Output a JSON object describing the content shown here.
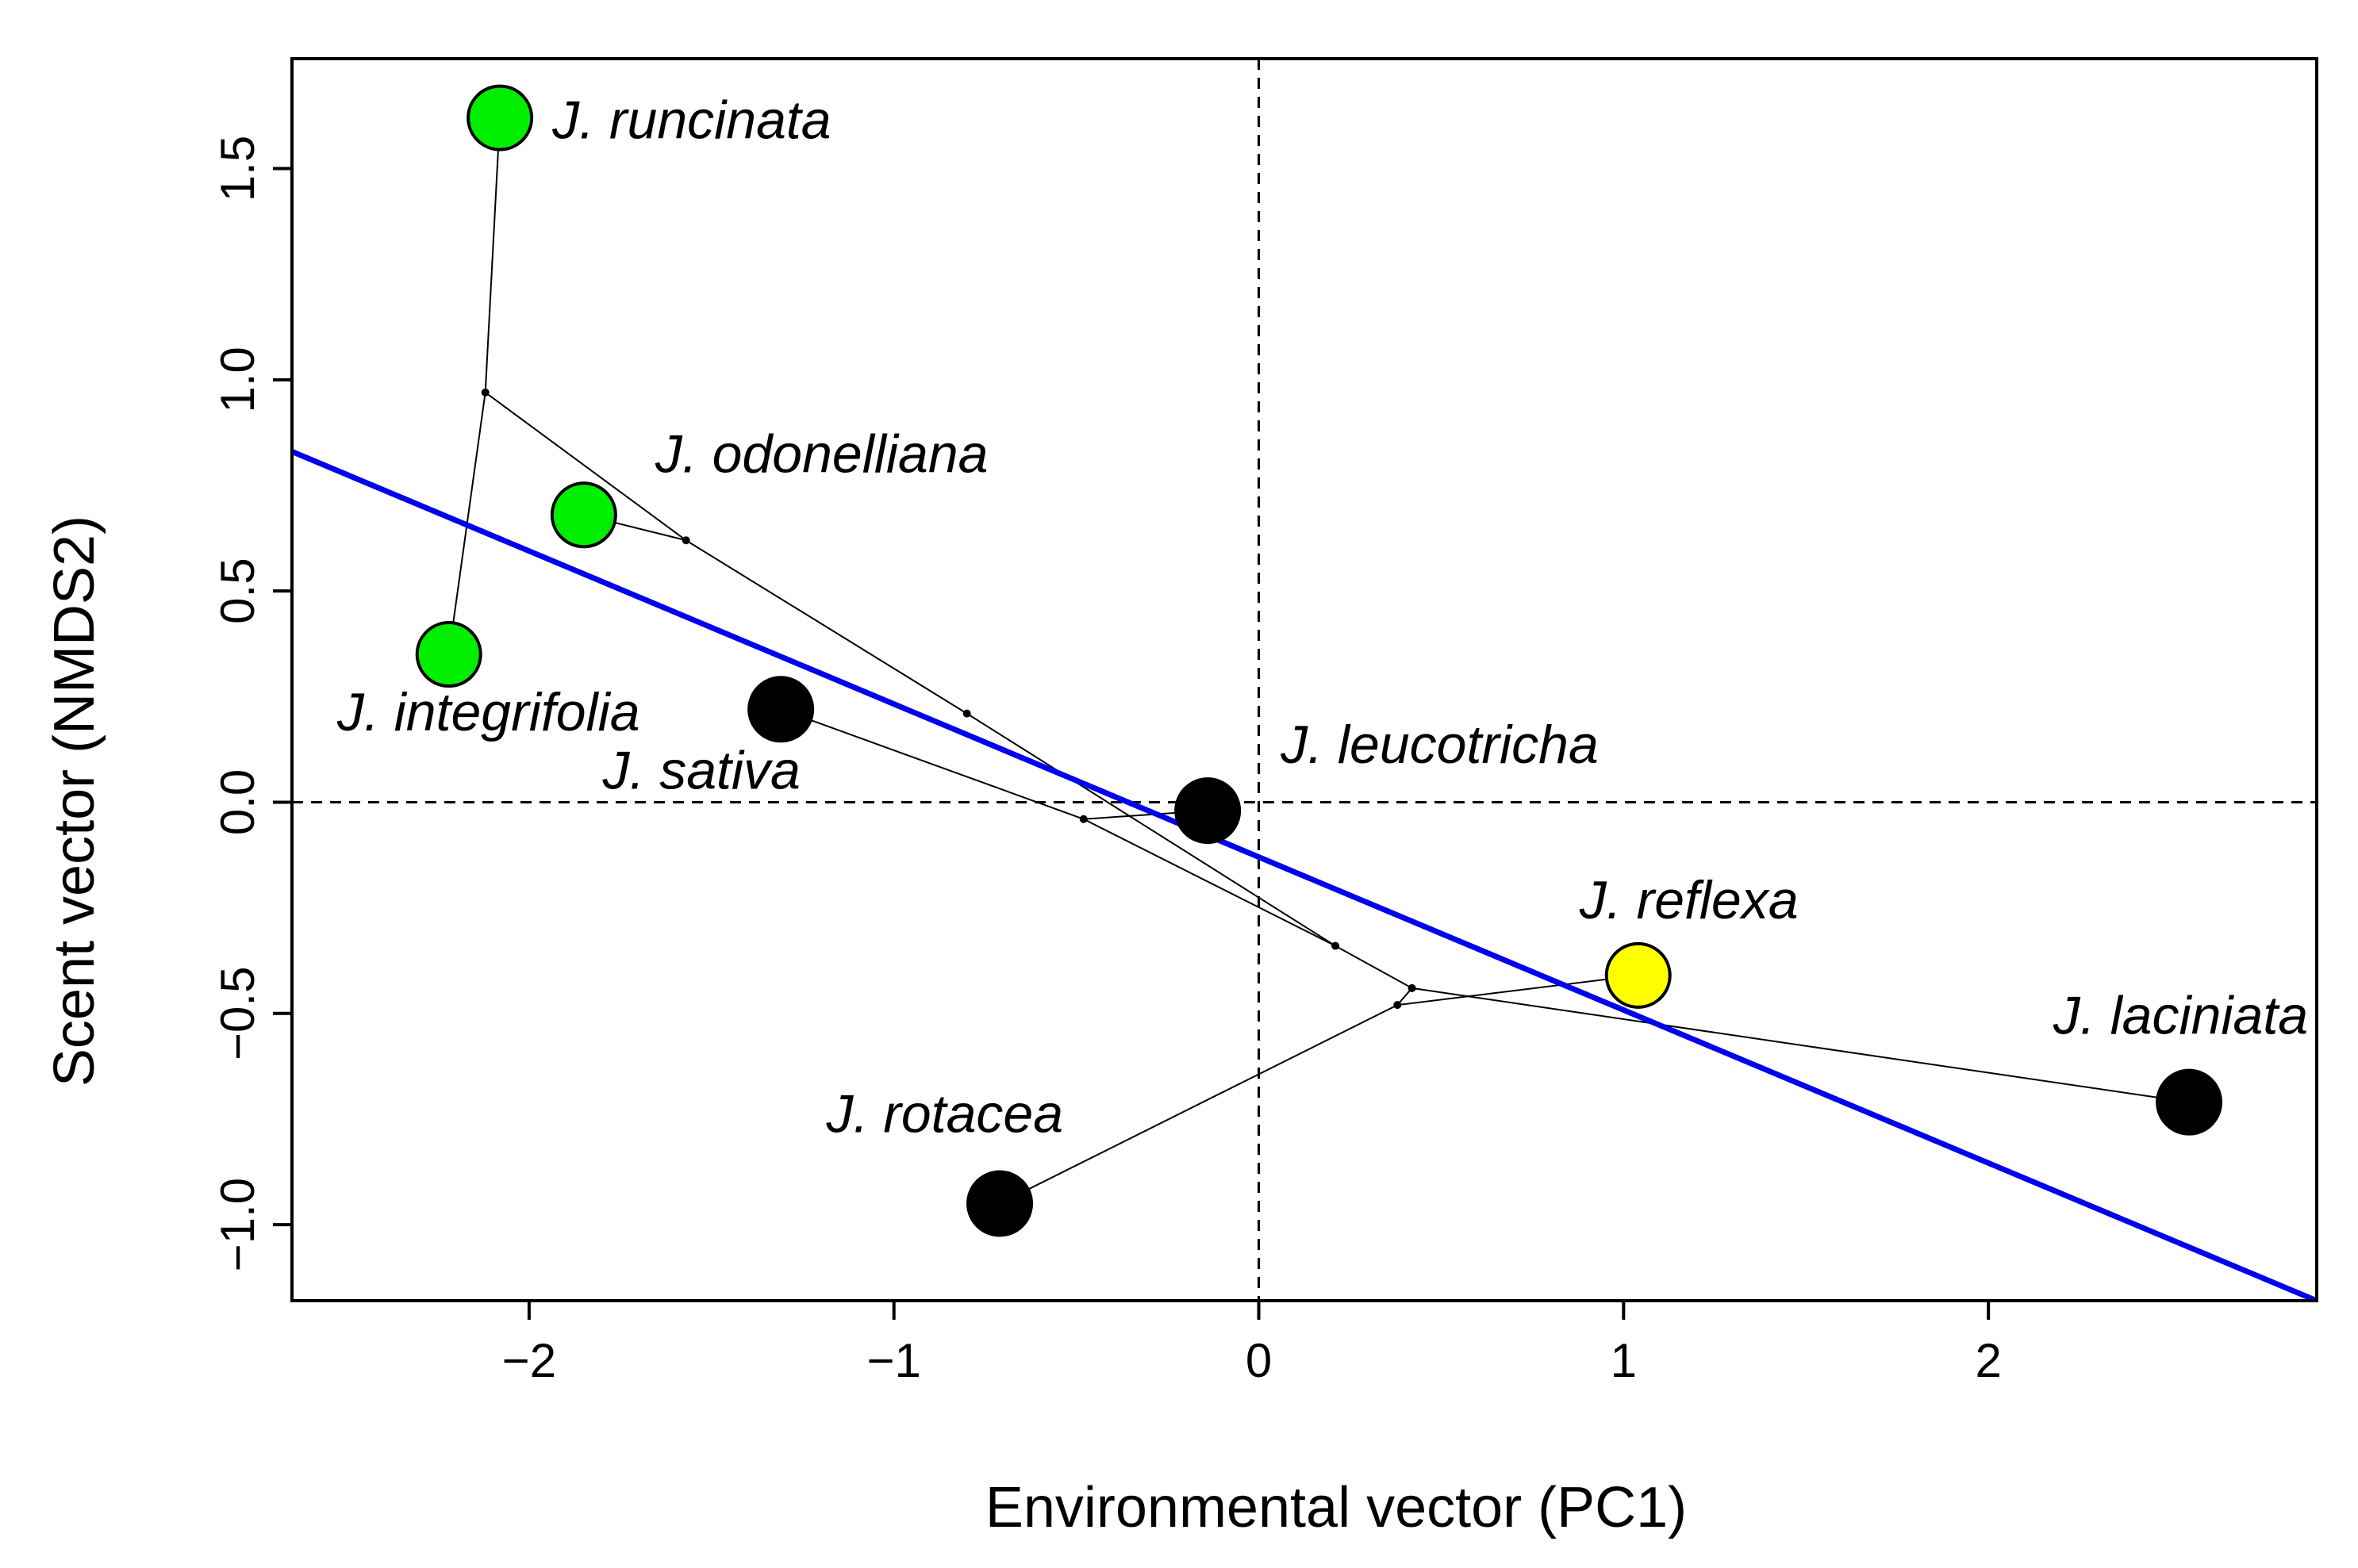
{
  "chart_data": {
    "type": "scatter",
    "title": "",
    "xlabel": "Environmental vector (PC1)",
    "ylabel": "Scent vector (NMDS2)",
    "xlim": [
      -2.65,
      2.9
    ],
    "ylim": [
      -1.18,
      1.76
    ],
    "xticks": [
      -2,
      -1,
      0,
      1,
      2
    ],
    "xtick_labels": [
      "−2",
      "−1",
      "0",
      "1",
      "2"
    ],
    "yticks": [
      -1.0,
      -0.5,
      0.0,
      0.5,
      1.0,
      1.5
    ],
    "ytick_labels": [
      "−1.0",
      "−0.5",
      "0.0",
      "0.5",
      "1.0",
      "1.5"
    ],
    "reference_lines": {
      "x": 0,
      "y": 0,
      "style": "dashed"
    },
    "colors": {
      "green": "#00ee00",
      "yellow": "#ffff00",
      "black": "#000000",
      "regression": "#0000ee"
    },
    "points": [
      {
        "name": "J. runcinata",
        "x": -2.08,
        "y": 1.62,
        "color": "#00ee00",
        "label_pos": "right"
      },
      {
        "name": "J. odonelliana",
        "x": -1.85,
        "y": 0.68,
        "color": "#00ee00",
        "label_pos": "upper-right"
      },
      {
        "name": "J. integrifolia",
        "x": -2.22,
        "y": 0.35,
        "color": "#00ee00",
        "label_pos": "below"
      },
      {
        "name": "J. sativa",
        "x": -1.31,
        "y": 0.22,
        "color": "#000000",
        "label_pos": "below"
      },
      {
        "name": "J. leucotricha",
        "x": -0.14,
        "y": -0.02,
        "color": "#000000",
        "label_pos": "upper-right"
      },
      {
        "name": "J. reflexa",
        "x": 1.04,
        "y": -0.41,
        "color": "#ffff00",
        "label_pos": "above"
      },
      {
        "name": "J. laciniata",
        "x": 2.55,
        "y": -0.71,
        "color": "#000000",
        "label_pos": "upper-left"
      },
      {
        "name": "J. rotacea",
        "x": -0.71,
        "y": -0.95,
        "color": "#000000",
        "label_pos": "upper-left"
      }
    ],
    "tree_nodes": [
      {
        "id": "n1",
        "x": -2.12,
        "y": 0.97
      },
      {
        "id": "n2",
        "x": -1.57,
        "y": 0.62
      },
      {
        "id": "n3",
        "x": -0.8,
        "y": 0.21
      },
      {
        "id": "n4",
        "x": -0.48,
        "y": -0.04
      },
      {
        "id": "n5",
        "x": 0.21,
        "y": -0.34
      },
      {
        "id": "n6",
        "x": 0.42,
        "y": -0.44
      },
      {
        "id": "n7",
        "x": 0.38,
        "y": -0.48
      }
    ],
    "tree_edges": [
      [
        "J. runcinata",
        "n1"
      ],
      [
        "J. integrifolia",
        "n1"
      ],
      [
        "n1",
        "n2"
      ],
      [
        "J. odonelliana",
        "n2"
      ],
      [
        "n2",
        "n3"
      ],
      [
        "n3",
        "n5"
      ],
      [
        "J. sativa",
        "n4"
      ],
      [
        "J. leucotricha",
        "n4"
      ],
      [
        "n4",
        "n5"
      ],
      [
        "n5",
        "n6"
      ],
      [
        "n6",
        "J. laciniata"
      ],
      [
        "n6",
        "n7"
      ],
      [
        "n7",
        "J. reflexa"
      ],
      [
        "n7",
        "J. rotacea"
      ]
    ],
    "regression_line": {
      "x1": -2.65,
      "y1": 0.83,
      "x2": 2.9,
      "y2": -1.18
    }
  }
}
